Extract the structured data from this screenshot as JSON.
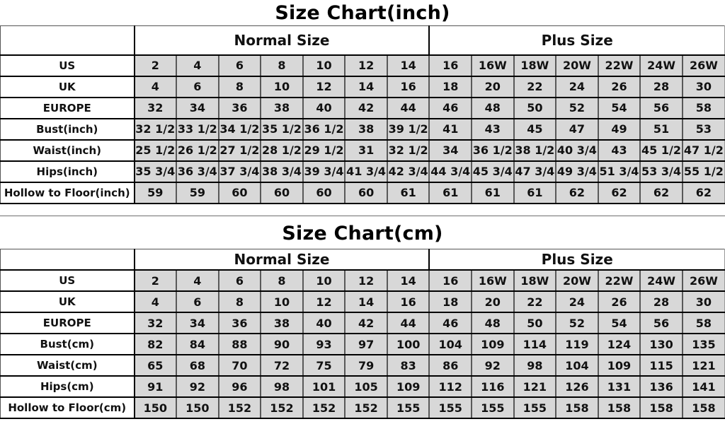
{
  "colors": {
    "cell_background": "#d8d8d8",
    "grid_dark": "#000000",
    "grid_mid": "#595959",
    "text": "#111111",
    "page_background": "#ffffff"
  },
  "charts": [
    {
      "id": "inch",
      "title": "Size Chart(inch)",
      "group_headers": [
        {
          "label": "Normal Size",
          "span": 7
        },
        {
          "label": "Plus Size",
          "span": 7
        }
      ],
      "rows": [
        {
          "label": "US",
          "values": [
            "2",
            "4",
            "6",
            "8",
            "10",
            "12",
            "14",
            "16",
            "16W",
            "18W",
            "20W",
            "22W",
            "24W",
            "26W"
          ]
        },
        {
          "label": "UK",
          "values": [
            "4",
            "6",
            "8",
            "10",
            "12",
            "14",
            "16",
            "18",
            "20",
            "22",
            "24",
            "26",
            "28",
            "30"
          ]
        },
        {
          "label": "EUROPE",
          "values": [
            "32",
            "34",
            "36",
            "38",
            "40",
            "42",
            "44",
            "46",
            "48",
            "50",
            "52",
            "54",
            "56",
            "58"
          ]
        },
        {
          "label": "Bust(inch)",
          "values": [
            "32 1/2",
            "33 1/2",
            "34 1/2",
            "35 1/2",
            "36 1/2",
            "38",
            "39 1/2",
            "41",
            "43",
            "45",
            "47",
            "49",
            "51",
            "53"
          ]
        },
        {
          "label": "Waist(inch)",
          "values": [
            "25 1/2",
            "26 1/2",
            "27 1/2",
            "28 1/2",
            "29 1/2",
            "31",
            "32 1/2",
            "34",
            "36 1/2",
            "38 1/2",
            "40 3/4",
            "43",
            "45 1/2",
            "47 1/2"
          ]
        },
        {
          "label": "Hips(inch)",
          "values": [
            "35 3/4",
            "36 3/4",
            "37 3/4",
            "38 3/4",
            "39 3/4",
            "41 3/4",
            "42 3/4",
            "44 3/4",
            "45 3/4",
            "47 3/4",
            "49 3/4",
            "51 3/4",
            "53 3/4",
            "55 1/2"
          ]
        },
        {
          "label": "Hollow to Floor(inch)",
          "values": [
            "59",
            "59",
            "60",
            "60",
            "60",
            "60",
            "61",
            "61",
            "61",
            "61",
            "62",
            "62",
            "62",
            "62"
          ]
        }
      ]
    },
    {
      "id": "cm",
      "title": "Size Chart(cm)",
      "group_headers": [
        {
          "label": "Normal Size",
          "span": 7
        },
        {
          "label": "Plus Size",
          "span": 7
        }
      ],
      "rows": [
        {
          "label": "US",
          "values": [
            "2",
            "4",
            "6",
            "8",
            "10",
            "12",
            "14",
            "16",
            "16W",
            "18W",
            "20W",
            "22W",
            "24W",
            "26W"
          ]
        },
        {
          "label": "UK",
          "values": [
            "4",
            "6",
            "8",
            "10",
            "12",
            "14",
            "16",
            "18",
            "20",
            "22",
            "24",
            "26",
            "28",
            "30"
          ]
        },
        {
          "label": "EUROPE",
          "values": [
            "32",
            "34",
            "36",
            "38",
            "40",
            "42",
            "44",
            "46",
            "48",
            "50",
            "52",
            "54",
            "56",
            "58"
          ]
        },
        {
          "label": "Bust(cm)",
          "values": [
            "82",
            "84",
            "88",
            "90",
            "93",
            "97",
            "100",
            "104",
            "109",
            "114",
            "119",
            "124",
            "130",
            "135"
          ]
        },
        {
          "label": "Waist(cm)",
          "values": [
            "65",
            "68",
            "70",
            "72",
            "75",
            "79",
            "83",
            "86",
            "92",
            "98",
            "104",
            "109",
            "115",
            "121"
          ]
        },
        {
          "label": "Hips(cm)",
          "values": [
            "91",
            "92",
            "96",
            "98",
            "101",
            "105",
            "109",
            "112",
            "116",
            "121",
            "126",
            "131",
            "136",
            "141"
          ]
        },
        {
          "label": "Hollow to Floor(cm)",
          "values": [
            "150",
            "150",
            "152",
            "152",
            "152",
            "152",
            "155",
            "155",
            "155",
            "155",
            "158",
            "158",
            "158",
            "158"
          ]
        }
      ]
    }
  ]
}
